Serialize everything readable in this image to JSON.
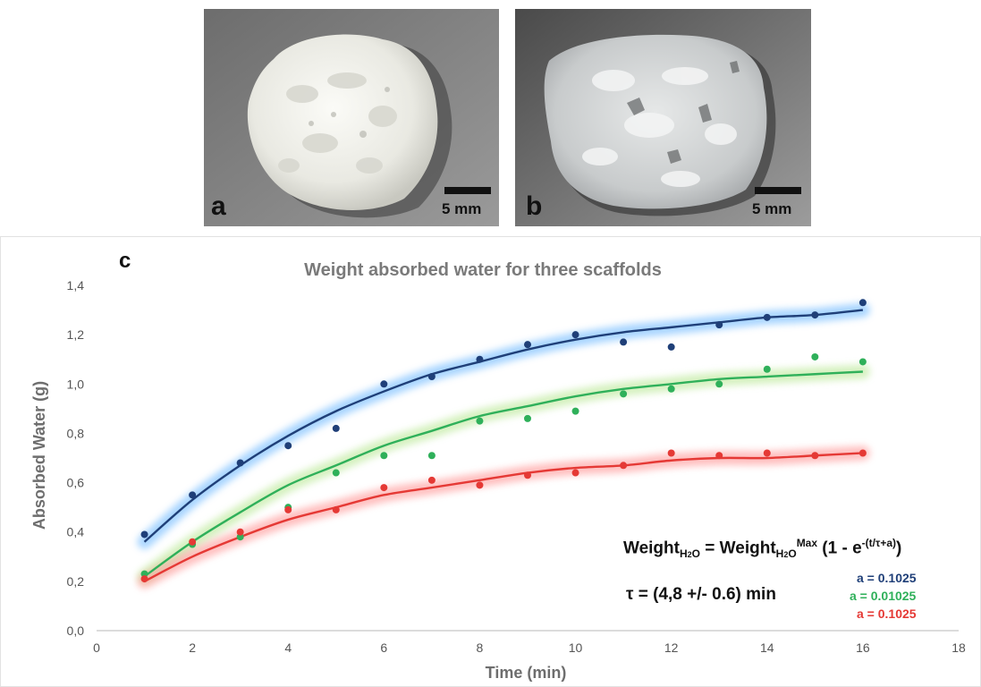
{
  "panels": {
    "a": {
      "letter": "a",
      "scale": "5 mm"
    },
    "b": {
      "letter": "b",
      "scale": "5 mm"
    },
    "c": {
      "letter": "c"
    }
  },
  "equation": {
    "lhs": "Weight",
    "sub": "H",
    "sub2": "2",
    "sub3": "O",
    "eq": " = Weight",
    "sup": "Max",
    "tail_open": " (1 - e",
    "exp": "-(t/τ+a)",
    "tail_close": ")",
    "tau": "τ = (4,8 +/- 0.6)  min"
  },
  "params": [
    {
      "text": "a = 0.1025",
      "color": "#1f3f78"
    },
    {
      "text": "a = 0.01025",
      "color": "#2fb05a"
    },
    {
      "text": "a = 0.1025",
      "color": "#e53935"
    }
  ],
  "chart_data": {
    "type": "scatter",
    "title": "Weight absorbed water  for three scaffolds",
    "xlabel": "Time  (min)",
    "ylabel": "Absorbed Water (g)",
    "xlim": [
      0,
      18
    ],
    "ylim": [
      0,
      1.4
    ],
    "xticks": [
      "0",
      "2",
      "4",
      "6",
      "8",
      "10",
      "12",
      "14",
      "16",
      "18"
    ],
    "yticks": [
      "0,0",
      "0,2",
      "0,4",
      "0,6",
      "0,8",
      "1,0",
      "1,2",
      "1,4"
    ],
    "grid": false,
    "series": [
      {
        "color": "#1f3f78",
        "glow": "#64b4ff",
        "x": [
          1,
          2,
          3,
          4,
          5,
          6,
          7,
          8,
          9,
          10,
          11,
          12,
          13,
          14,
          15,
          16
        ],
        "y": [
          0.39,
          0.55,
          0.68,
          0.75,
          0.82,
          1.0,
          1.03,
          1.1,
          1.16,
          1.2,
          1.17,
          1.15,
          1.24,
          1.27,
          1.28,
          1.33
        ],
        "fit": [
          [
            1,
            0.36
          ],
          [
            2,
            0.53
          ],
          [
            3,
            0.67
          ],
          [
            4,
            0.79
          ],
          [
            5,
            0.89
          ],
          [
            6,
            0.97
          ],
          [
            7,
            1.04
          ],
          [
            8,
            1.09
          ],
          [
            9,
            1.14
          ],
          [
            10,
            1.18
          ],
          [
            11,
            1.21
          ],
          [
            12,
            1.23
          ],
          [
            13,
            1.25
          ],
          [
            14,
            1.27
          ],
          [
            15,
            1.28
          ],
          [
            16,
            1.3
          ]
        ]
      },
      {
        "color": "#2fb05a",
        "glow": "#b4e68c",
        "x": [
          1,
          2,
          3,
          4,
          5,
          6,
          7,
          8,
          9,
          10,
          11,
          12,
          13,
          14,
          15,
          16
        ],
        "y": [
          0.23,
          0.35,
          0.38,
          0.5,
          0.64,
          0.71,
          0.71,
          0.85,
          0.86,
          0.89,
          0.96,
          0.98,
          1.0,
          1.06,
          1.11,
          1.09
        ],
        "fit": [
          [
            1,
            0.22
          ],
          [
            2,
            0.36
          ],
          [
            3,
            0.48
          ],
          [
            4,
            0.59
          ],
          [
            5,
            0.67
          ],
          [
            6,
            0.75
          ],
          [
            7,
            0.81
          ],
          [
            8,
            0.87
          ],
          [
            9,
            0.91
          ],
          [
            10,
            0.95
          ],
          [
            11,
            0.98
          ],
          [
            12,
            1.0
          ],
          [
            13,
            1.02
          ],
          [
            14,
            1.03
          ],
          [
            15,
            1.04
          ],
          [
            16,
            1.05
          ]
        ]
      },
      {
        "color": "#e53935",
        "glow": "#ff8c8c",
        "x": [
          1,
          2,
          3,
          4,
          5,
          6,
          7,
          8,
          9,
          10,
          11,
          12,
          13,
          14,
          15,
          16
        ],
        "y": [
          0.21,
          0.36,
          0.4,
          0.49,
          0.49,
          0.58,
          0.61,
          0.59,
          0.63,
          0.64,
          0.67,
          0.72,
          0.71,
          0.72,
          0.71,
          0.72
        ],
        "fit": [
          [
            1,
            0.2
          ],
          [
            2,
            0.3
          ],
          [
            3,
            0.38
          ],
          [
            4,
            0.45
          ],
          [
            5,
            0.5
          ],
          [
            6,
            0.55
          ],
          [
            7,
            0.58
          ],
          [
            8,
            0.61
          ],
          [
            9,
            0.64
          ],
          [
            10,
            0.66
          ],
          [
            11,
            0.67
          ],
          [
            12,
            0.69
          ],
          [
            13,
            0.7
          ],
          [
            14,
            0.7
          ],
          [
            15,
            0.71
          ],
          [
            16,
            0.72
          ]
        ]
      }
    ]
  }
}
